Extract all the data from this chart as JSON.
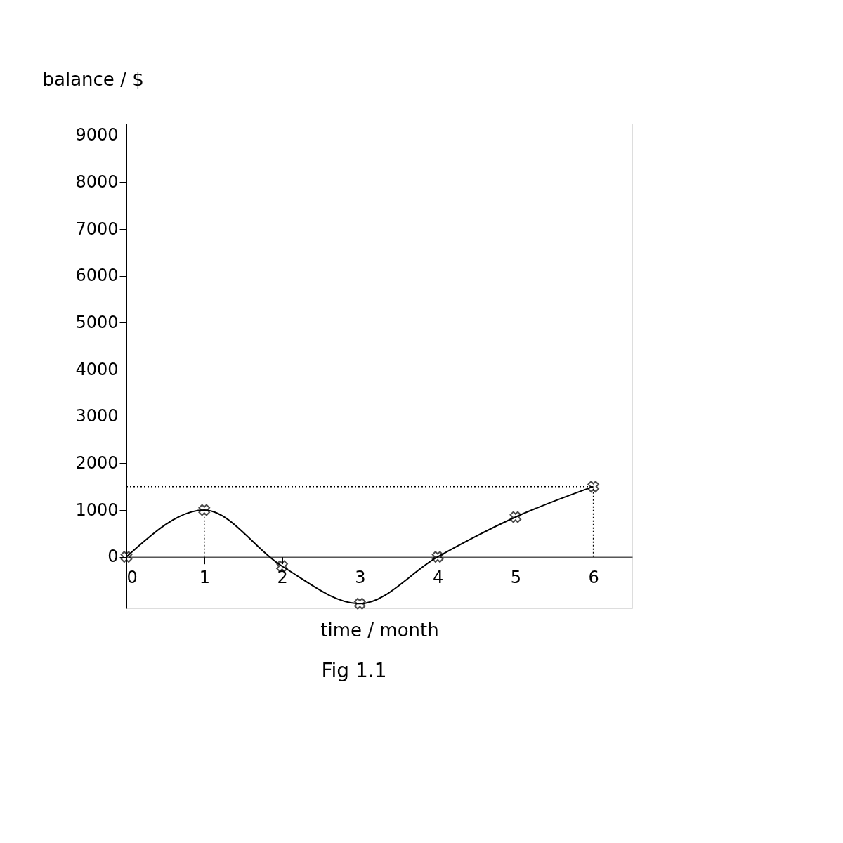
{
  "chart_data": {
    "type": "line",
    "xlabel": "time / month",
    "ylabel": "balance / $",
    "x": [
      0,
      1,
      2,
      3,
      4,
      5,
      6
    ],
    "series": [
      {
        "color": "#000000",
        "values": [
          0,
          1000,
          -200,
          -1000,
          0,
          850,
          1500
        ]
      }
    ],
    "xlim": [
      0,
      6.5
    ],
    "xticks": [
      0,
      1,
      2,
      3,
      4,
      5,
      6
    ],
    "ylim": [
      -1100,
      9250
    ],
    "yticks": [
      0,
      1000,
      2000,
      3000,
      4000,
      5000,
      6000,
      7000,
      8000,
      9000
    ],
    "ref_lines": [
      {
        "axis": "y",
        "value": 1500,
        "line_style": "dotted",
        "color": "#000000"
      },
      {
        "axis": "x",
        "value": 1,
        "line_style": "dotted",
        "color": "#000000"
      },
      {
        "axis": "x",
        "value": 6,
        "line_style": "dotted",
        "color": "#000000"
      }
    ],
    "annotations": [
      "Fig 1.1"
    ],
    "marker": "cross",
    "line_style": "solid",
    "grid": false
  }
}
